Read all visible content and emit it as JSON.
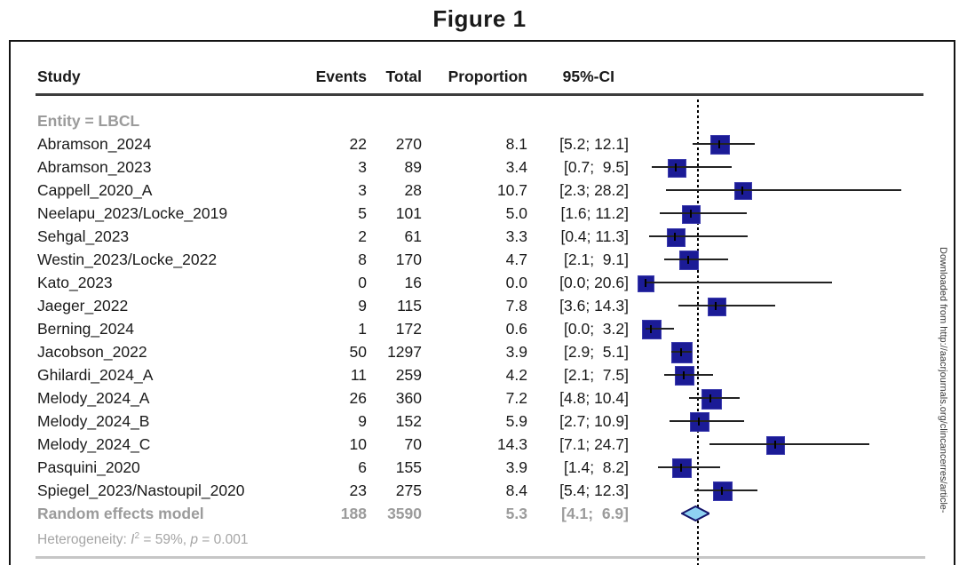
{
  "figure": {
    "title": "Figure 1"
  },
  "table": {
    "headers": {
      "study": "Study",
      "events": "Events",
      "total": "Total",
      "proportion": "Proportion",
      "ci": "95%-CI"
    }
  },
  "chart_data": {
    "type": "forest",
    "group_label": "Entity = LBCL",
    "x_axis": {
      "min": 0,
      "max": 30,
      "unit": "percent",
      "ticks_visible": false
    },
    "reference_line": "vertical dotted line at pooled estimate",
    "legend_position": "none",
    "studies": [
      {
        "study": "Abramson_2024",
        "events": "22",
        "total": "270",
        "proportion": "8.1",
        "ci_text": "[5.2; 12.1]",
        "ci_low": 5.2,
        "ci_high": 12.1
      },
      {
        "study": "Abramson_2023",
        "events": "3",
        "total": "89",
        "proportion": "3.4",
        "ci_text": "[0.7;  9.5]",
        "ci_low": 0.7,
        "ci_high": 9.5
      },
      {
        "study": "Cappell_2020_A",
        "events": "3",
        "total": "28",
        "proportion": "10.7",
        "ci_text": "[2.3; 28.2]",
        "ci_low": 2.3,
        "ci_high": 28.2
      },
      {
        "study": "Neelapu_2023/Locke_2019",
        "events": "5",
        "total": "101",
        "proportion": "5.0",
        "ci_text": "[1.6; 11.2]",
        "ci_low": 1.6,
        "ci_high": 11.2
      },
      {
        "study": "Sehgal_2023",
        "events": "2",
        "total": "61",
        "proportion": "3.3",
        "ci_text": "[0.4; 11.3]",
        "ci_low": 0.4,
        "ci_high": 11.3
      },
      {
        "study": "Westin_2023/Locke_2022",
        "events": "8",
        "total": "170",
        "proportion": "4.7",
        "ci_text": "[2.1;  9.1]",
        "ci_low": 2.1,
        "ci_high": 9.1
      },
      {
        "study": "Kato_2023",
        "events": "0",
        "total": "16",
        "proportion": "0.0",
        "ci_text": "[0.0; 20.6]",
        "ci_low": 0.0,
        "ci_high": 20.6
      },
      {
        "study": "Jaeger_2022",
        "events": "9",
        "total": "115",
        "proportion": "7.8",
        "ci_text": "[3.6; 14.3]",
        "ci_low": 3.6,
        "ci_high": 14.3
      },
      {
        "study": "Berning_2024",
        "events": "1",
        "total": "172",
        "proportion": "0.6",
        "ci_text": "[0.0;  3.2]",
        "ci_low": 0.0,
        "ci_high": 3.2
      },
      {
        "study": "Jacobson_2022",
        "events": "50",
        "total": "1297",
        "proportion": "3.9",
        "ci_text": "[2.9;  5.1]",
        "ci_low": 2.9,
        "ci_high": 5.1
      },
      {
        "study": "Ghilardi_2024_A",
        "events": "11",
        "total": "259",
        "proportion": "4.2",
        "ci_text": "[2.1;  7.5]",
        "ci_low": 2.1,
        "ci_high": 7.5
      },
      {
        "study": "Melody_2024_A",
        "events": "26",
        "total": "360",
        "proportion": "7.2",
        "ci_text": "[4.8; 10.4]",
        "ci_low": 4.8,
        "ci_high": 10.4
      },
      {
        "study": "Melody_2024_B",
        "events": "9",
        "total": "152",
        "proportion": "5.9",
        "ci_text": "[2.7; 10.9]",
        "ci_low": 2.7,
        "ci_high": 10.9
      },
      {
        "study": "Melody_2024_C",
        "events": "10",
        "total": "70",
        "proportion": "14.3",
        "ci_text": "[7.1; 24.7]",
        "ci_low": 7.1,
        "ci_high": 24.7
      },
      {
        "study": "Pasquini_2020",
        "events": "6",
        "total": "155",
        "proportion": "3.9",
        "ci_text": "[1.4;  8.2]",
        "ci_low": 1.4,
        "ci_high": 8.2
      },
      {
        "study": "Spiegel_2023/Nastoupil_2020",
        "events": "23",
        "total": "275",
        "proportion": "8.4",
        "ci_text": "[5.4; 12.3]",
        "ci_low": 5.4,
        "ci_high": 12.3
      }
    ],
    "summary": {
      "study": "Random effects model",
      "events": "188",
      "total": "3590",
      "proportion": "5.3",
      "ci_text": "[4.1;  6.9]",
      "ci_low": 4.1,
      "ci_high": 6.9
    },
    "heterogeneity": {
      "prefix": "Heterogeneity: ",
      "i_label": "I",
      "sup": "2",
      "mid": " = 59%, ",
      "p_label": "p",
      "tail": " = 0.001"
    },
    "colors": {
      "square": "#1b1b96",
      "diamond_fill": "#8ed2f2",
      "diamond_border": "#15156b",
      "gray_text": "#9b9b9b"
    }
  },
  "watermark": {
    "text": "Downloaded from http://aacrjournals.org/clincancerres/article-"
  }
}
